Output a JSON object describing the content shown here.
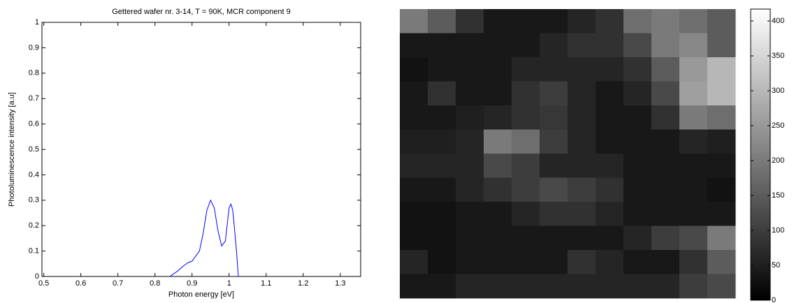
{
  "chart_data": [
    {
      "type": "line",
      "title": "Gettered wafer nr. 3-14, T = 90K, MCR component 9",
      "xlabel": "Photon energy [eV]",
      "ylabel": "Photoluminescence intensity [a.u]",
      "x": [
        0.84,
        0.86,
        0.88,
        0.89,
        0.9,
        0.92,
        0.93,
        0.94,
        0.95,
        0.96,
        0.97,
        0.98,
        0.99,
        1.0,
        1.005,
        1.01,
        1.02,
        1.025
      ],
      "values": [
        0,
        0.02,
        0.045,
        0.055,
        0.06,
        0.1,
        0.17,
        0.26,
        0.3,
        0.27,
        0.18,
        0.12,
        0.14,
        0.27,
        0.285,
        0.26,
        0.1,
        0
      ],
      "color": "#0000ff",
      "xlim": [
        0.495,
        1.355
      ],
      "xticks": [
        0.5,
        0.6,
        0.7,
        0.8,
        0.9,
        1,
        1.1,
        1.2,
        1.3
      ],
      "ylim": [
        0,
        1
      ],
      "yticks": [
        0,
        0.1,
        0.2,
        0.3,
        0.4,
        0.5,
        0.6,
        0.7,
        0.8,
        0.9,
        1
      ]
    },
    {
      "type": "heatmap",
      "colormap": "gray",
      "clim": [
        0,
        417
      ],
      "cticks": [
        0,
        50,
        100,
        150,
        200,
        250,
        300,
        350,
        400
      ],
      "z": [
        [
          200,
          150,
          80,
          40,
          40,
          40,
          60,
          80,
          180,
          200,
          180,
          150
        ],
        [
          40,
          40,
          40,
          40,
          40,
          60,
          80,
          80,
          120,
          200,
          220,
          150
        ],
        [
          30,
          40,
          40,
          40,
          60,
          60,
          60,
          60,
          80,
          150,
          250,
          300
        ],
        [
          40,
          80,
          40,
          40,
          80,
          100,
          60,
          40,
          60,
          120,
          260,
          300
        ],
        [
          40,
          40,
          50,
          60,
          80,
          90,
          60,
          40,
          40,
          80,
          200,
          180
        ],
        [
          50,
          50,
          60,
          200,
          180,
          100,
          60,
          40,
          40,
          40,
          60,
          50
        ],
        [
          60,
          60,
          60,
          120,
          100,
          60,
          60,
          60,
          40,
          40,
          40,
          40
        ],
        [
          40,
          40,
          60,
          80,
          100,
          120,
          100,
          80,
          40,
          40,
          40,
          30
        ],
        [
          30,
          30,
          40,
          40,
          60,
          80,
          80,
          60,
          40,
          40,
          40,
          40
        ],
        [
          30,
          30,
          40,
          40,
          40,
          40,
          40,
          40,
          60,
          100,
          120,
          200
        ],
        [
          60,
          30,
          40,
          40,
          40,
          40,
          80,
          60,
          40,
          40,
          80,
          150
        ],
        [
          40,
          40,
          60,
          60,
          60,
          60,
          60,
          60,
          60,
          60,
          100,
          120
        ]
      ]
    }
  ]
}
